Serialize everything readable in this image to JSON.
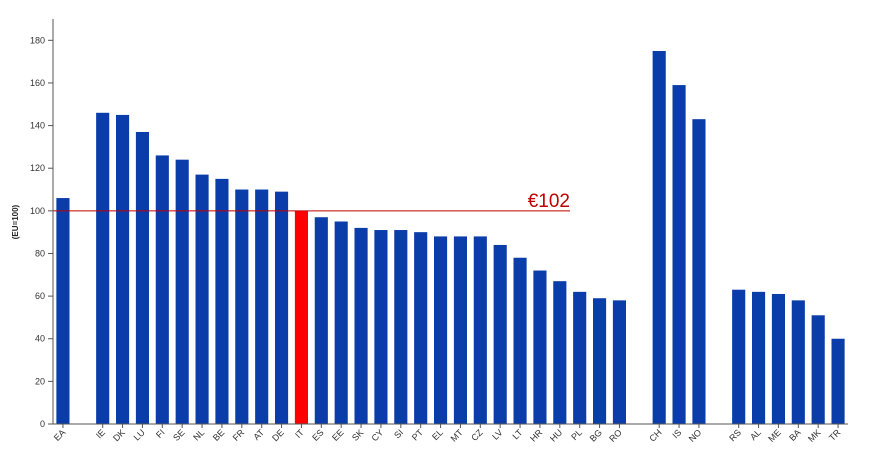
{
  "chart_data": {
    "type": "bar",
    "ylabel": "(EU=100)",
    "ylim": [
      0,
      190
    ],
    "yticks": [
      0,
      20,
      40,
      60,
      80,
      100,
      120,
      140,
      160,
      180
    ],
    "grid": false,
    "colors": {
      "bar": "#0A3CAA",
      "highlight": "#FF0000",
      "reference": "#C00000",
      "axis": "#555555"
    },
    "highlight_category": "IT",
    "reference_line": {
      "value": 100,
      "label": "€102"
    },
    "categories": [
      "EA",
      "",
      "IE",
      "DK",
      "LU",
      "FI",
      "SE",
      "NL",
      "BE",
      "FR",
      "AT",
      "DE",
      "IT",
      "ES",
      "EE",
      "SK",
      "CY",
      "SI",
      "PT",
      "EL",
      "MT",
      "CZ",
      "LV",
      "LT",
      "HR",
      "HU",
      "PL",
      "BG",
      "RO",
      "",
      "CH",
      "IS",
      "NO",
      "",
      "RS",
      "AL",
      "ME",
      "BA",
      "MK",
      "TR"
    ],
    "values": [
      106,
      null,
      146,
      145,
      137,
      126,
      124,
      117,
      115,
      110,
      110,
      109,
      100,
      97,
      95,
      92,
      91,
      91,
      90,
      88,
      88,
      88,
      84,
      78,
      72,
      67,
      62,
      59,
      58,
      null,
      175,
      159,
      143,
      null,
      63,
      62,
      61,
      58,
      51,
      40
    ]
  }
}
